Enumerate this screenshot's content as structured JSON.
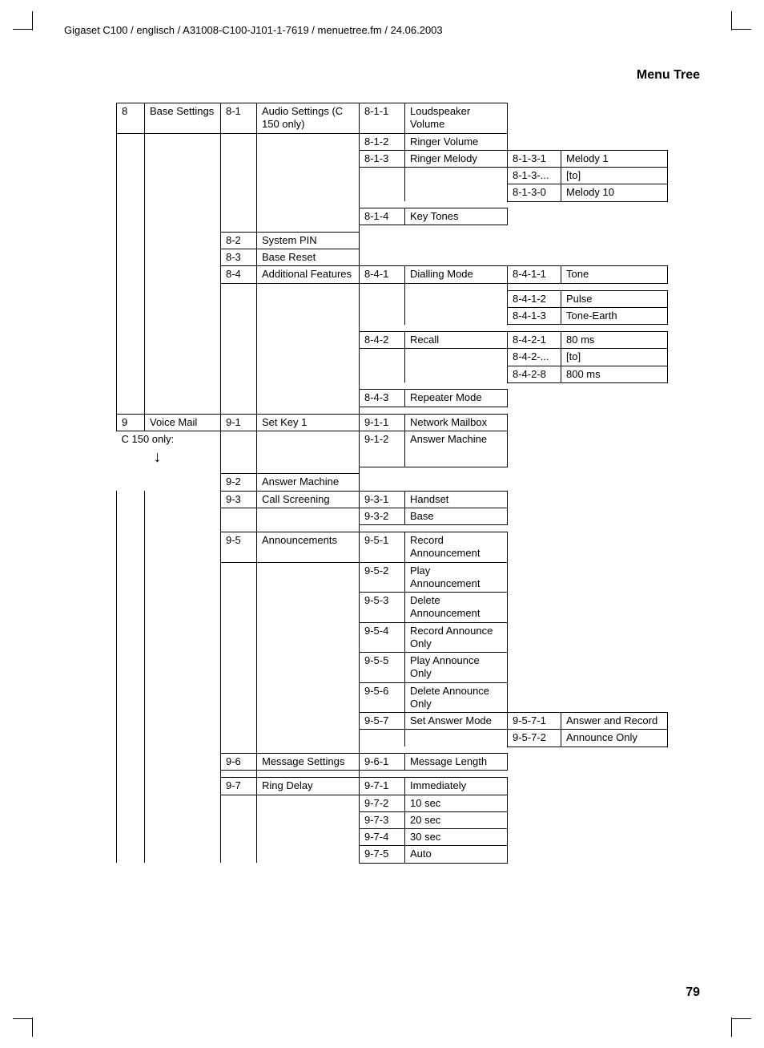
{
  "header": "Gigaset C100 / englisch / A31008-C100-J101-1-7619 / menuetree.fm / 24.06.2003",
  "title": "Menu Tree",
  "pageNumber": "79",
  "note": "C 150 only:",
  "rows": [
    {
      "c1n": "8",
      "c1t": "Base Settings",
      "c2n": "8-1",
      "c2t": "Audio Settings (C 150 only)",
      "c3n": "8-1-1",
      "c3t": "Loudspeaker Volume",
      "c4n": "",
      "c4t": ""
    },
    {
      "c1n": "",
      "c1t": "",
      "c2n": "",
      "c2t": "",
      "c3n": "8-1-2",
      "c3t": "Ringer Volume",
      "c4n": "",
      "c4t": ""
    },
    {
      "c1n": "",
      "c1t": "",
      "c2n": "",
      "c2t": "",
      "c3n": "8-1-3",
      "c3t": "Ringer Melody",
      "c4n": "8-1-3-1",
      "c4t": "Melody 1"
    },
    {
      "c1n": "",
      "c1t": "",
      "c2n": "",
      "c2t": "",
      "c3n": "",
      "c3t": "",
      "c4n": "8-1-3-...",
      "c4t": "[to]"
    },
    {
      "c1n": "",
      "c1t": "",
      "c2n": "",
      "c2t": "",
      "c3n": "",
      "c3t": "",
      "c4n": "8-1-3-0",
      "c4t": "Melody 10"
    },
    {
      "spacer34": true
    },
    {
      "c1n": "",
      "c1t": "",
      "c2n": "",
      "c2t": "",
      "c3n": "8-1-4",
      "c3t": "Key Tones",
      "c4n": "",
      "c4t": ""
    },
    {
      "spacer3": true
    },
    {
      "c1n": "",
      "c1t": "",
      "c2n": "8-2",
      "c2t": "System PIN",
      "c3n": "",
      "c3t": "",
      "c4n": "",
      "c4t": ""
    },
    {
      "c1n": "",
      "c1t": "",
      "c2n": "8-3",
      "c2t": "Base Reset",
      "c3n": "",
      "c3t": "",
      "c4n": "",
      "c4t": ""
    },
    {
      "c1n": "",
      "c1t": "",
      "c2n": "8-4",
      "c2t": "Additional Features",
      "c3n": "8-4-1",
      "c3t": "Dialling Mode",
      "c4n": "8-4-1-1",
      "c4t": "Tone"
    },
    {
      "spacer4only": true
    },
    {
      "c1n": "",
      "c1t": "",
      "c2n": "",
      "c2t": "",
      "c3n": "",
      "c3t": "",
      "c4n": "8-4-1-2",
      "c4t": "Pulse"
    },
    {
      "c1n": "",
      "c1t": "",
      "c2n": "",
      "c2t": "",
      "c3n": "",
      "c3t": "",
      "c4n": "8-4-1-3",
      "c4t": "Tone-Earth"
    },
    {
      "spacer34": true
    },
    {
      "c1n": "",
      "c1t": "",
      "c2n": "",
      "c2t": "",
      "c3n": "8-4-2",
      "c3t": "Recall",
      "c4n": "8-4-2-1",
      "c4t": "80 ms"
    },
    {
      "c1n": "",
      "c1t": "",
      "c2n": "",
      "c2t": "",
      "c3n": "",
      "c3t": "",
      "c4n": "8-4-2-...",
      "c4t": "[to]"
    },
    {
      "c1n": "",
      "c1t": "",
      "c2n": "",
      "c2t": "",
      "c3n": "",
      "c3t": "",
      "c4n": "8-4-2-8",
      "c4t": "800 ms"
    },
    {
      "spacer34": true
    },
    {
      "c1n": "",
      "c1t": "",
      "c2n": "",
      "c2t": "",
      "c3n": "8-4-3",
      "c3t": "Repeater Mode",
      "c4n": "",
      "c4t": ""
    },
    {
      "spacer3": true
    },
    {
      "c1n": "9",
      "c1t": "Voice Mail",
      "c2n": "9-1",
      "c2t": "Set Key 1",
      "c3n": "9-1-1",
      "c3t": "Network Mailbox",
      "c4n": "",
      "c4t": ""
    },
    {
      "note": true,
      "c2n": "",
      "c2t": "",
      "c3n": "9-1-2",
      "c3t": "Answer Machine",
      "c4n": "",
      "c4t": ""
    },
    {
      "spacer3": true,
      "noteBelow": true
    },
    {
      "c1n": "",
      "c1t": "",
      "c2n": "9-2",
      "c2t": "Answer Machine",
      "c3n": "",
      "c3t": "",
      "c4n": "",
      "c4t": "",
      "noteArrow": true
    },
    {
      "c1n": "",
      "c1t": "",
      "c2n": "9-3",
      "c2t": "Call Screening",
      "c3n": "9-3-1",
      "c3t": "Handset",
      "c4n": "",
      "c4t": ""
    },
    {
      "c1n": "",
      "c1t": "",
      "c2n": "",
      "c2t": "",
      "c3n": "9-3-2",
      "c3t": "Base",
      "c4n": "",
      "c4t": ""
    },
    {
      "spacer3": true
    },
    {
      "c1n": "",
      "c1t": "",
      "c2n": "9-5",
      "c2t": "Announcements",
      "c3n": "9-5-1",
      "c3t": "Record Announcement",
      "c4n": "",
      "c4t": ""
    },
    {
      "c1n": "",
      "c1t": "",
      "c2n": "",
      "c2t": "",
      "c3n": "9-5-2",
      "c3t": "Play Announcement",
      "c4n": "",
      "c4t": ""
    },
    {
      "c1n": "",
      "c1t": "",
      "c2n": "",
      "c2t": "",
      "c3n": "9-5-3",
      "c3t": "Delete Announcement",
      "c4n": "",
      "c4t": ""
    },
    {
      "c1n": "",
      "c1t": "",
      "c2n": "",
      "c2t": "",
      "c3n": "9-5-4",
      "c3t": "Record Announce Only",
      "c4n": "",
      "c4t": ""
    },
    {
      "c1n": "",
      "c1t": "",
      "c2n": "",
      "c2t": "",
      "c3n": "9-5-5",
      "c3t": "Play Announce Only",
      "c4n": "",
      "c4t": ""
    },
    {
      "c1n": "",
      "c1t": "",
      "c2n": "",
      "c2t": "",
      "c3n": "9-5-6",
      "c3t": "Delete Announce Only",
      "c4n": "",
      "c4t": ""
    },
    {
      "c1n": "",
      "c1t": "",
      "c2n": "",
      "c2t": "",
      "c3n": "9-5-7",
      "c3t": "Set Answer Mode",
      "c4n": "9-5-7-1",
      "c4t": "Answer and Record"
    },
    {
      "c1n": "",
      "c1t": "",
      "c2n": "",
      "c2t": "",
      "c3n": "",
      "c3t": "",
      "c4n": "9-5-7-2",
      "c4t": "Announce Only"
    },
    {
      "spacer34": true
    },
    {
      "c1n": "",
      "c1t": "",
      "c2n": "9-6",
      "c2t": "Message Settings",
      "c3n": "9-6-1",
      "c3t": "Message Length",
      "c4n": "",
      "c4t": ""
    },
    {
      "spacer3": true
    },
    {
      "c1n": "",
      "c1t": "",
      "c2n": "9-7",
      "c2t": "Ring Delay",
      "c3n": "9-7-1",
      "c3t": "Immediately",
      "c4n": "",
      "c4t": ""
    },
    {
      "c1n": "",
      "c1t": "",
      "c2n": "",
      "c2t": "",
      "c3n": "9-7-2",
      "c3t": "10 sec",
      "c4n": "",
      "c4t": ""
    },
    {
      "c1n": "",
      "c1t": "",
      "c2n": "",
      "c2t": "",
      "c3n": "9-7-3",
      "c3t": "20 sec",
      "c4n": "",
      "c4t": ""
    },
    {
      "c1n": "",
      "c1t": "",
      "c2n": "",
      "c2t": "",
      "c3n": "9-7-4",
      "c3t": "30 sec",
      "c4n": "",
      "c4t": ""
    },
    {
      "c1n": "",
      "c1t": "",
      "c2n": "",
      "c2t": "",
      "c3n": "9-7-5",
      "c3t": "Auto",
      "c4n": "",
      "c4t": ""
    }
  ]
}
